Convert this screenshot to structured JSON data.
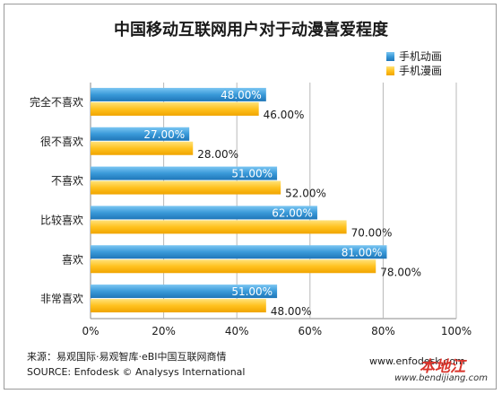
{
  "title": "中国移动互联网用户对于动漫喜爱程度",
  "source_cn": "来源：易观国际·易观智库·eBI中国互联网商情",
  "source_en": "SOURCE: Enfodesk © Analysys International",
  "website": "www.enfodesk.com",
  "watermark": "本地江",
  "watermark_url": "www.bendijiang.com",
  "colors": {
    "series1": "#3a9ad9",
    "series2": "#ffc21f"
  },
  "chart_data": {
    "type": "bar",
    "orientation": "horizontal",
    "categories": [
      "完全不喜欢",
      "很不喜欢",
      "不喜欢",
      "比较喜欢",
      "喜欢",
      "非常喜欢"
    ],
    "series": [
      {
        "name": "手机动画",
        "values": [
          48,
          27,
          51,
          62,
          81,
          51
        ],
        "labels": [
          "48.00%",
          "27.00%",
          "51.00%",
          "62.00%",
          "81.00%",
          "51.00%"
        ]
      },
      {
        "name": "手机漫画",
        "values": [
          46,
          28,
          52,
          70,
          78,
          48
        ],
        "labels": [
          "46.00%",
          "28.00%",
          "52.00%",
          "70.00%",
          "78.00%",
          "48.00%"
        ]
      }
    ],
    "xlim": [
      0,
      100
    ],
    "x_ticks": [
      "0%",
      "20%",
      "40%",
      "60%",
      "80%",
      "100%"
    ],
    "grid": true,
    "legend_position": "top-right"
  }
}
